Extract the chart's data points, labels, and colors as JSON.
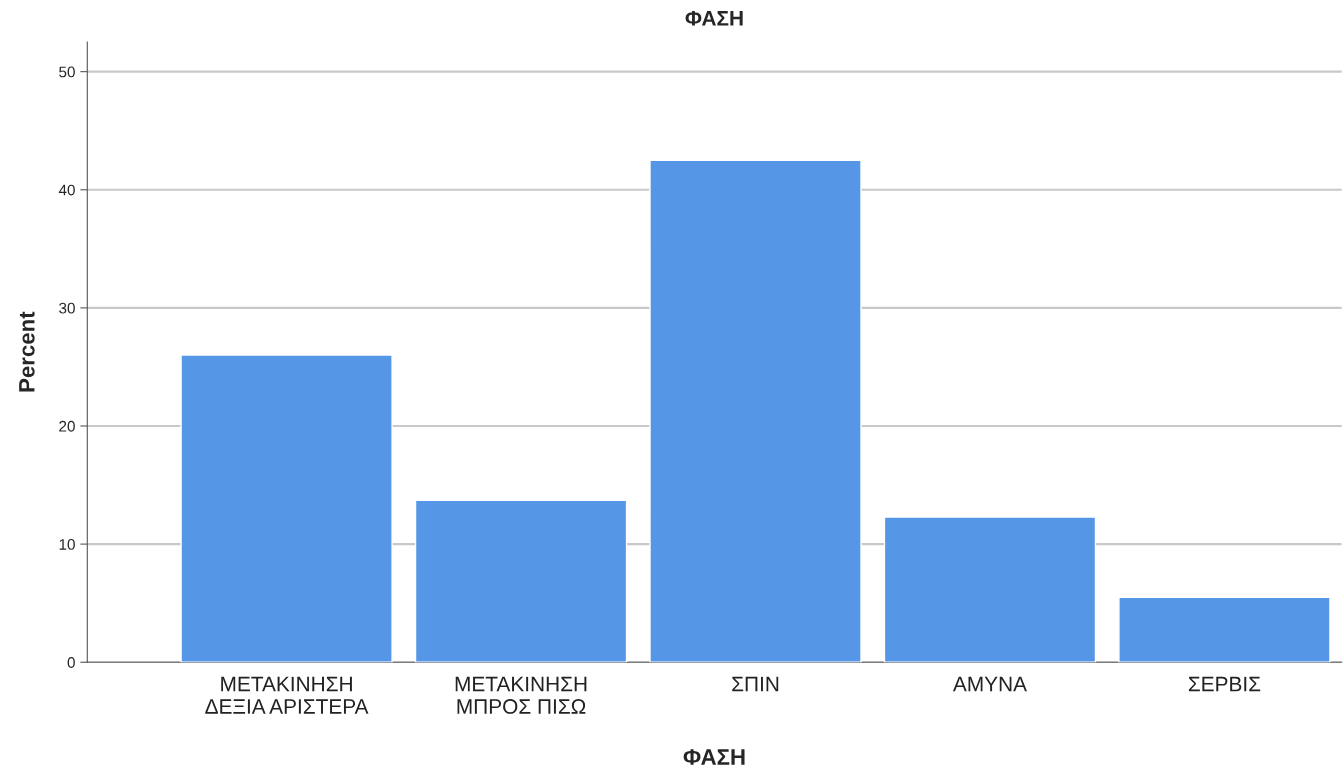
{
  "chart_data": {
    "type": "bar",
    "title": "ΦΑΣΗ",
    "xlabel": "ΦΑΣΗ",
    "ylabel": "Percent",
    "categories": [
      "ΜΕΤΑΚΙΝΗΣΗ\nΔΕΞΙΑ ΑΡΙΣΤΕΡΑ",
      "ΜΕΤΑΚΙΝΗΣΗ\nΜΠΡΟΣ ΠΙΣΩ",
      "ΣΠΙΝ",
      "ΑΜΥΝΑ",
      "ΣΕΡΒΙΣ"
    ],
    "values": [
      26.0,
      13.7,
      42.5,
      12.3,
      5.5
    ],
    "color": "#5596e6",
    "ylim": [
      0,
      52.5
    ],
    "yticks": [
      0,
      10,
      20,
      30,
      40,
      50
    ],
    "grid": "y"
  }
}
